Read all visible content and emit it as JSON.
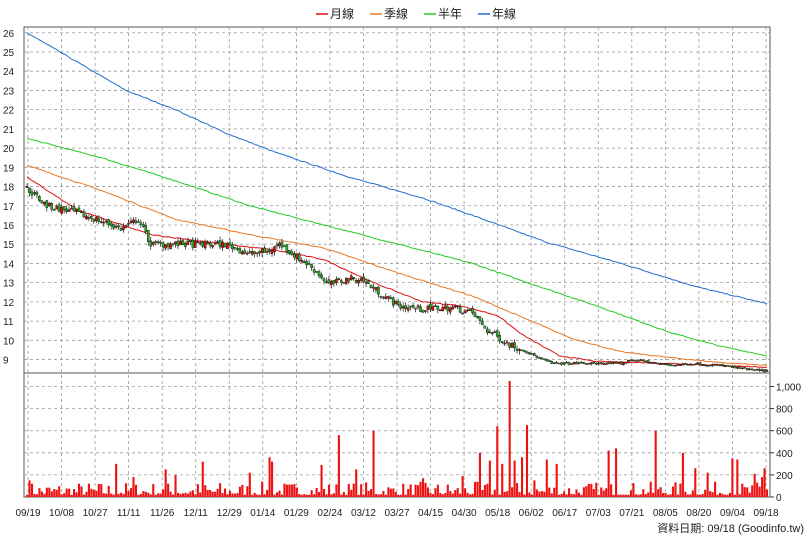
{
  "chart_data": {
    "type": "candlestick",
    "legend": [
      {
        "label": "月線",
        "color": "#dd1111"
      },
      {
        "label": "季線",
        "color": "#e87722"
      },
      {
        "label": "半年",
        "color": "#22cc22"
      },
      {
        "label": "年線",
        "color": "#1f6fd0"
      }
    ],
    "legend_position": "top-center",
    "grid": true,
    "price_axis": {
      "range": [
        8.3,
        26.3
      ],
      "ticks": [
        9,
        10,
        11,
        12,
        13,
        14,
        15,
        16,
        17,
        18,
        19,
        20,
        21,
        22,
        23,
        24,
        25,
        26
      ],
      "side": "left"
    },
    "volume_axis": {
      "range": [
        0,
        1050
      ],
      "ticks": [
        0,
        200,
        400,
        600,
        800,
        1000
      ],
      "tick_labels": [
        "0",
        "200",
        "400",
        "600",
        "800",
        "1,000"
      ],
      "side": "right"
    },
    "date_ticks": [
      "09/19",
      "10/08",
      "10/27",
      "11/11",
      "11/26",
      "12/11",
      "12/29",
      "01/14",
      "01/29",
      "02/24",
      "03/12",
      "03/27",
      "04/15",
      "04/30",
      "05/18",
      "06/02",
      "06/17",
      "07/03",
      "07/21",
      "08/05",
      "08/20",
      "09/04",
      "09/18"
    ],
    "up_color": "#dd1111",
    "down_color": "#22aa22",
    "volume_color": "#ee1111",
    "price_keypoints": [
      {
        "d": 0,
        "p": 17.9
      },
      {
        "d": 8,
        "p": 17.0
      },
      {
        "d": 18,
        "p": 16.7
      },
      {
        "d": 28,
        "p": 16.3
      },
      {
        "d": 38,
        "p": 15.8
      },
      {
        "d": 45,
        "p": 16.3
      },
      {
        "d": 50,
        "p": 15.0
      },
      {
        "d": 60,
        "p": 15.0
      },
      {
        "d": 80,
        "p": 15.0
      },
      {
        "d": 90,
        "p": 14.5
      },
      {
        "d": 97,
        "p": 14.6
      },
      {
        "d": 102,
        "p": 15.0
      },
      {
        "d": 115,
        "p": 13.8
      },
      {
        "d": 122,
        "p": 12.9
      },
      {
        "d": 130,
        "p": 13.2
      },
      {
        "d": 135,
        "p": 13.2
      },
      {
        "d": 140,
        "p": 12.7
      },
      {
        "d": 150,
        "p": 11.8
      },
      {
        "d": 160,
        "p": 11.6
      },
      {
        "d": 168,
        "p": 11.7
      },
      {
        "d": 173,
        "p": 11.7
      },
      {
        "d": 180,
        "p": 11.4
      },
      {
        "d": 186,
        "p": 10.5
      },
      {
        "d": 195,
        "p": 9.8
      },
      {
        "d": 205,
        "p": 9.2
      },
      {
        "d": 212,
        "p": 8.8
      },
      {
        "d": 225,
        "p": 8.8
      },
      {
        "d": 240,
        "p": 8.8
      },
      {
        "d": 245,
        "p": 9.0
      },
      {
        "d": 260,
        "p": 8.7
      },
      {
        "d": 270,
        "p": 8.8
      },
      {
        "d": 280,
        "p": 8.7
      },
      {
        "d": 290,
        "p": 8.5
      },
      {
        "d": 299,
        "p": 8.4
      }
    ],
    "ma_month": [
      {
        "d": 0,
        "p": 18.5
      },
      {
        "d": 20,
        "p": 16.8
      },
      {
        "d": 50,
        "p": 15.5
      },
      {
        "d": 80,
        "p": 15.0
      },
      {
        "d": 100,
        "p": 14.7
      },
      {
        "d": 120,
        "p": 14.2
      },
      {
        "d": 140,
        "p": 13.0
      },
      {
        "d": 160,
        "p": 12.0
      },
      {
        "d": 175,
        "p": 11.8
      },
      {
        "d": 190,
        "p": 11.3
      },
      {
        "d": 200,
        "p": 10.3
      },
      {
        "d": 215,
        "p": 9.2
      },
      {
        "d": 230,
        "p": 8.9
      },
      {
        "d": 260,
        "p": 8.8
      },
      {
        "d": 299,
        "p": 8.6
      }
    ],
    "ma_quarter": [
      {
        "d": 0,
        "p": 19.1
      },
      {
        "d": 30,
        "p": 17.8
      },
      {
        "d": 60,
        "p": 16.3
      },
      {
        "d": 90,
        "p": 15.5
      },
      {
        "d": 120,
        "p": 14.8
      },
      {
        "d": 150,
        "p": 13.5
      },
      {
        "d": 180,
        "p": 12.3
      },
      {
        "d": 200,
        "p": 11.2
      },
      {
        "d": 220,
        "p": 10.1
      },
      {
        "d": 240,
        "p": 9.4
      },
      {
        "d": 260,
        "p": 9.1
      },
      {
        "d": 280,
        "p": 8.85
      },
      {
        "d": 299,
        "p": 8.7
      }
    ],
    "ma_halfyear": [
      {
        "d": 0,
        "p": 20.5
      },
      {
        "d": 30,
        "p": 19.5
      },
      {
        "d": 60,
        "p": 18.3
      },
      {
        "d": 90,
        "p": 17.0
      },
      {
        "d": 120,
        "p": 16.0
      },
      {
        "d": 150,
        "p": 15.0
      },
      {
        "d": 180,
        "p": 14.0
      },
      {
        "d": 200,
        "p": 13.1
      },
      {
        "d": 230,
        "p": 11.8
      },
      {
        "d": 260,
        "p": 10.4
      },
      {
        "d": 280,
        "p": 9.7
      },
      {
        "d": 299,
        "p": 9.2
      }
    ],
    "ma_year": [
      {
        "d": 0,
        "p": 26.0
      },
      {
        "d": 20,
        "p": 24.5
      },
      {
        "d": 40,
        "p": 23.0
      },
      {
        "d": 60,
        "p": 22.0
      },
      {
        "d": 80,
        "p": 20.8
      },
      {
        "d": 100,
        "p": 19.8
      },
      {
        "d": 130,
        "p": 18.5
      },
      {
        "d": 160,
        "p": 17.4
      },
      {
        "d": 180,
        "p": 16.5
      },
      {
        "d": 210,
        "p": 15.1
      },
      {
        "d": 240,
        "p": 14.0
      },
      {
        "d": 270,
        "p": 12.8
      },
      {
        "d": 299,
        "p": 11.9
      }
    ],
    "volume_spikes": [
      {
        "d": 1,
        "v": 150
      },
      {
        "d": 36,
        "v": 300
      },
      {
        "d": 43,
        "v": 180
      },
      {
        "d": 56,
        "v": 250
      },
      {
        "d": 60,
        "v": 200
      },
      {
        "d": 71,
        "v": 320
      },
      {
        "d": 90,
        "v": 220
      },
      {
        "d": 98,
        "v": 360
      },
      {
        "d": 99,
        "v": 320
      },
      {
        "d": 119,
        "v": 290
      },
      {
        "d": 126,
        "v": 560
      },
      {
        "d": 133,
        "v": 250
      },
      {
        "d": 140,
        "v": 600
      },
      {
        "d": 160,
        "v": 170
      },
      {
        "d": 176,
        "v": 190
      },
      {
        "d": 183,
        "v": 400
      },
      {
        "d": 187,
        "v": 330
      },
      {
        "d": 190,
        "v": 640
      },
      {
        "d": 192,
        "v": 300
      },
      {
        "d": 195,
        "v": 1050
      },
      {
        "d": 197,
        "v": 330
      },
      {
        "d": 200,
        "v": 360
      },
      {
        "d": 202,
        "v": 650
      },
      {
        "d": 205,
        "v": 150
      },
      {
        "d": 210,
        "v": 340
      },
      {
        "d": 214,
        "v": 300
      },
      {
        "d": 235,
        "v": 420
      },
      {
        "d": 238,
        "v": 440
      },
      {
        "d": 254,
        "v": 600
      },
      {
        "d": 265,
        "v": 400
      },
      {
        "d": 275,
        "v": 220
      },
      {
        "d": 285,
        "v": 350
      },
      {
        "d": 297,
        "v": 180
      },
      {
        "d": 340,
        "v": 150
      },
      {
        "d": 270,
        "v": 260
      },
      {
        "d": 287,
        "v": 340
      },
      {
        "d": 294,
        "v": 210
      },
      {
        "d": 298,
        "v": 260
      }
    ],
    "source_note": "資料日期: 09/18  (Goodinfo.tw)"
  }
}
